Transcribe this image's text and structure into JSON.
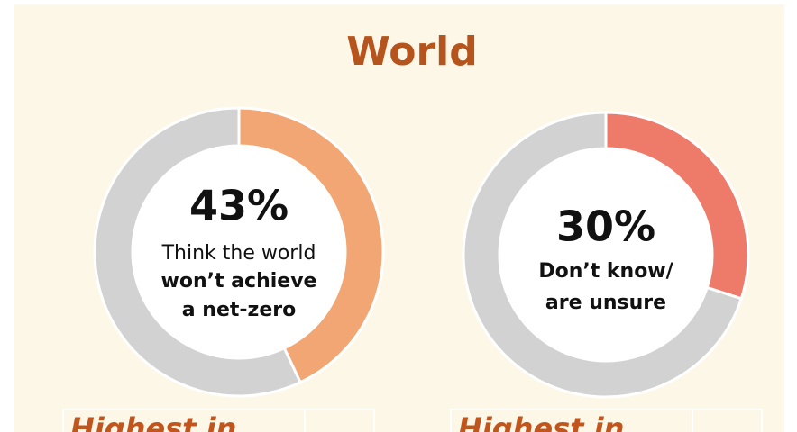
{
  "title": "World",
  "chart_data": [
    {
      "type": "donut",
      "values": [
        43,
        57
      ],
      "value_labels": [
        "43%",
        null
      ],
      "colors": [
        "#f2a673",
        "#d2d2d2"
      ],
      "caption": [
        {
          "text": "Think the world",
          "bold": false
        },
        {
          "text": "won’t achieve",
          "bold": true
        },
        {
          "text": "a net-zero",
          "bold": true
        }
      ],
      "subheading": "Highest in"
    },
    {
      "type": "donut",
      "values": [
        30,
        70
      ],
      "value_labels": [
        "30%",
        null
      ],
      "colors": [
        "#ee7b6a",
        "#d2d2d2"
      ],
      "caption": [
        {
          "text": "Don’t know/",
          "bold": true
        },
        {
          "text": "are unsure",
          "bold": true
        }
      ],
      "subheading": "Highest in"
    }
  ]
}
